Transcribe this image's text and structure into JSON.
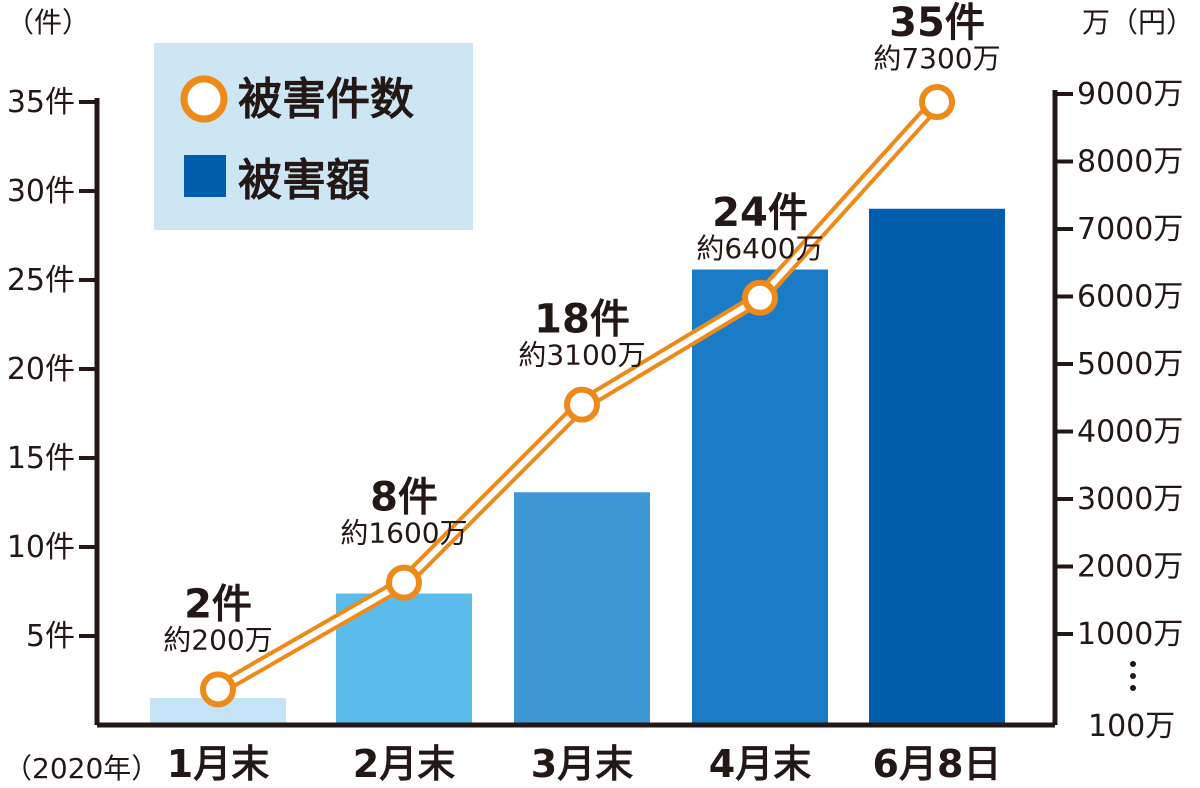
{
  "chart_data": {
    "type": "bar+line",
    "categories": [
      "1月末",
      "2月末",
      "3月末",
      "4月末",
      "6月8日"
    ],
    "series": [
      {
        "name": "被害件数",
        "kind": "line",
        "axis": "left",
        "values": [
          2,
          8,
          18,
          24,
          35
        ],
        "labels": [
          "2件",
          "8件",
          "18件",
          "24件",
          "35件"
        ],
        "color": "#ee8a1a"
      },
      {
        "name": "被害額",
        "kind": "bar",
        "axis": "right",
        "values": [
          200,
          1600,
          3100,
          6400,
          7300
        ],
        "labels": [
          "約200万",
          "約1600万",
          "約3100万",
          "約6400万",
          "約7300万"
        ],
        "colors": [
          "#c5e4f7",
          "#5bbbeb",
          "#3f97d6",
          "#1a7cc6",
          "#005ead"
        ]
      }
    ],
    "left_axis": {
      "unit_label": "（件）",
      "ticks": [
        5,
        10,
        15,
        20,
        25,
        30,
        35
      ],
      "tick_labels": [
        "5件",
        "10件",
        "15件",
        "20件",
        "25件",
        "30件",
        "35件"
      ],
      "ylim": [
        0,
        35
      ]
    },
    "right_axis": {
      "unit_label": "万（円）",
      "ticks": [
        1000,
        2000,
        3000,
        4000,
        5000,
        6000,
        7000,
        8000,
        9000
      ],
      "tick_labels": [
        "1000万",
        "2000万",
        "3000万",
        "4000万",
        "5000万",
        "6000万",
        "7000万",
        "8000万",
        "9000万"
      ],
      "base_label": "100万",
      "ylim": [
        100,
        9000
      ],
      "broken": true
    },
    "x_axis": {
      "year_label": "（2020年）"
    },
    "legend": {
      "position": "top-left",
      "background": "#cde6f4"
    },
    "grid": false
  }
}
